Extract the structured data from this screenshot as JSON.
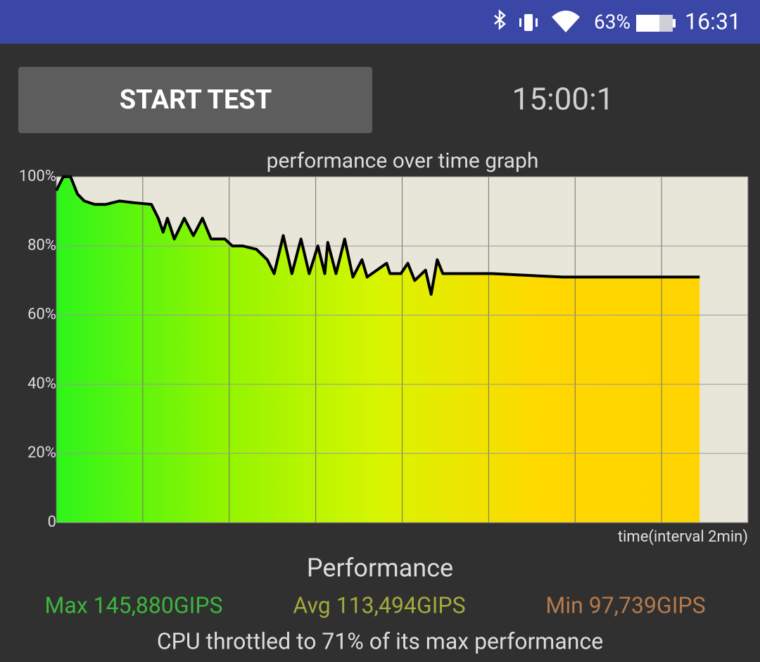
{
  "status_bar": {
    "battery": "63%",
    "time": "16:31"
  },
  "button": {
    "label": "START TEST"
  },
  "timer": "15:00:1",
  "chart_data": {
    "type": "area",
    "title": "performance over time graph",
    "x_label": "time(interval 2min)",
    "x": [
      0,
      0.16,
      0.33,
      0.49,
      0.65,
      0.89,
      1.14,
      1.46,
      1.79,
      2.2,
      2.36,
      2.47,
      2.57,
      2.73,
      2.96,
      3.17,
      3.38,
      3.58,
      3.9,
      4.07,
      4.31,
      4.63,
      4.88,
      5.04,
      5.25,
      5.45,
      5.66,
      5.85,
      6.05,
      6.21,
      6.28,
      6.47,
      6.67,
      6.86,
      7.07,
      7.19,
      7.64,
      7.72,
      7.97,
      8.13,
      8.29,
      8.54,
      8.67,
      8.81,
      8.94,
      10.08,
      11.71,
      13.33,
      14.88
    ],
    "values": [
      96,
      100,
      100,
      95,
      93,
      92,
      92,
      93,
      92.5,
      92,
      88,
      84,
      88,
      82,
      88,
      83,
      88,
      82,
      82,
      80,
      80,
      79,
      76,
      72,
      83,
      72,
      82,
      72,
      80,
      72,
      81,
      72,
      82,
      71,
      76,
      71,
      75,
      72,
      72,
      75,
      70,
      73,
      66,
      76,
      72,
      72,
      71,
      71,
      71
    ],
    "xlim": [
      0,
      16
    ],
    "xticks": [
      0,
      2,
      4,
      6,
      8,
      10,
      12,
      14,
      16
    ],
    "ylim": [
      0,
      100
    ],
    "yticks": [
      0,
      {
        "value": 20,
        "label": "20%"
      },
      {
        "value": 40,
        "label": "40%"
      },
      {
        "value": 60,
        "label": "60%"
      },
      {
        "value": 80,
        "label": "80%"
      },
      {
        "value": 100,
        "label": "100%"
      }
    ],
    "grid": true,
    "line_color": "#000000",
    "background": "#e8e6d8",
    "fill_colors": [
      "#2ef51a",
      "#8ff500",
      "#d8f500",
      "#ffd800",
      "#ffd400"
    ]
  },
  "summary": {
    "title": "Performance",
    "max": "Max 145,880GIPS",
    "avg": "Avg 113,494GIPS",
    "min": "Min 97,739GIPS",
    "note": "CPU throttled to 71% of its max performance"
  }
}
